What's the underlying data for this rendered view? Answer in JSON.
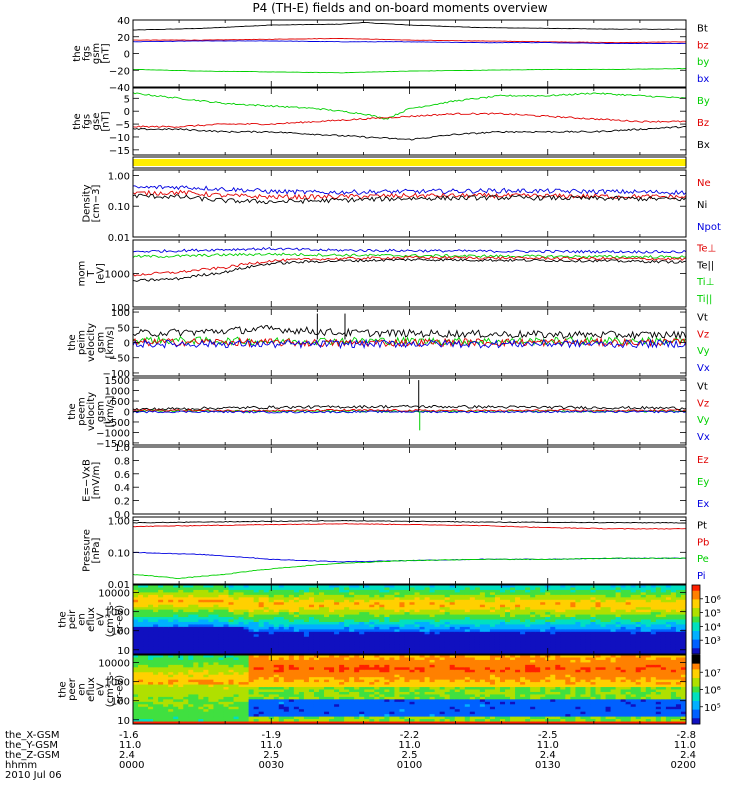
{
  "title": "P4 (TH-E) fields and on-board moments overview",
  "colors": {
    "black": "#000000",
    "red": "#e00000",
    "green": "#00d000",
    "blue": "#0000e0",
    "yellow": "#ffee00"
  },
  "chart_data": {
    "type": "line",
    "x_ticks": [
      "0000",
      "0030",
      "0100",
      "0130",
      "0200"
    ],
    "x_range_minutes": [
      0,
      120
    ],
    "footer": {
      "rows": [
        {
          "label": "the_X-GSM",
          "values": [
            "-1.6",
            "-1.9",
            "-2.2",
            "-2.5",
            "-2.8"
          ]
        },
        {
          "label": "the_Y-GSM",
          "values": [
            "11.0",
            "11.0",
            "11.0",
            "11.0",
            "11.0"
          ]
        },
        {
          "label": "the_Z-GSM",
          "values": [
            "2.4",
            "2.5",
            "2.5",
            "2.4",
            "2.4"
          ]
        },
        {
          "label": "hhmm",
          "values": [
            "0000",
            "0030",
            "0100",
            "0130",
            "0200"
          ]
        }
      ],
      "date": "2010 Jul 06"
    },
    "panels": [
      {
        "id": "fgs-gsm",
        "ylabel_lines": [
          "the",
          "fgs",
          "gsm",
          "[nT]"
        ],
        "ytick_labels": [
          "40",
          "20",
          "0",
          "−20",
          "−40"
        ],
        "legend": [
          {
            "text": "Bt",
            "color": "black"
          },
          {
            "text": "bz",
            "color": "red"
          },
          {
            "text": "by",
            "color": "green"
          },
          {
            "text": "bx",
            "color": "blue"
          }
        ],
        "series": [
          {
            "color": "black",
            "x": [
              0,
              15,
              30,
              45,
              50,
              60,
              75,
              90,
              105,
              120
            ],
            "y": [
              28,
              30,
              34,
              35,
              37,
              34,
              31,
              30,
              29,
              29
            ]
          },
          {
            "color": "red",
            "x": [
              0,
              15,
              30,
              45,
              60,
              75,
              90,
              105,
              120
            ],
            "y": [
              16,
              16,
              17,
              18,
              16,
              15,
              14,
              13,
              14
            ]
          },
          {
            "color": "blue",
            "x": [
              0,
              15,
              30,
              45,
              60,
              75,
              90,
              105,
              120
            ],
            "y": [
              14,
              15,
              15,
              14,
              14,
              13,
              13,
              12,
              12
            ]
          },
          {
            "color": "green",
            "x": [
              0,
              15,
              30,
              45,
              60,
              75,
              90,
              105,
              120
            ],
            "y": [
              -19,
              -21,
              -22,
              -23,
              -21,
              -20,
              -19,
              -19,
              -18
            ]
          }
        ]
      },
      {
        "id": "fgs-gse",
        "ylabel_lines": [
          "the",
          "fgs",
          "gse",
          "[nT]"
        ],
        "ytick_labels": [
          "5",
          "0",
          "−5",
          "−10",
          "−15"
        ],
        "legend": [
          {
            "text": "By",
            "color": "green"
          },
          {
            "text": "Bz",
            "color": "red"
          },
          {
            "text": "Bx",
            "color": "black"
          }
        ],
        "series": [
          {
            "color": "green",
            "x": [
              0,
              10,
              20,
              30,
              40,
              50,
              55,
              60,
              70,
              80,
              90,
              100,
              110,
              120
            ],
            "y": [
              7,
              5,
              3,
              2,
              1,
              -1,
              -3,
              1,
              4,
              6,
              6,
              7,
              6,
              5
            ]
          },
          {
            "color": "red",
            "x": [
              0,
              10,
              20,
              30,
              40,
              50,
              60,
              70,
              80,
              90,
              100,
              110,
              120
            ],
            "y": [
              -6,
              -6,
              -5,
              -5,
              -4,
              -3,
              -2,
              -1,
              -1,
              -2,
              -3,
              -4,
              -4
            ]
          },
          {
            "color": "black",
            "x": [
              0,
              10,
              20,
              30,
              40,
              50,
              60,
              70,
              80,
              90,
              100,
              110,
              120
            ],
            "y": [
              -7,
              -7,
              -8,
              -8,
              -9,
              -10,
              -11,
              -9,
              -8,
              -8,
              -8,
              -7,
              -6
            ]
          }
        ]
      },
      {
        "id": "yellow-bar",
        "ylabel_lines": [],
        "ytick_labels": [],
        "legend": []
      },
      {
        "id": "density",
        "ylabel_lines": [
          "Density",
          "[cm−3]"
        ],
        "ytick_labels": [
          "1.00",
          "0.10",
          "0.01"
        ],
        "legend": [
          {
            "text": "Ne",
            "color": "red"
          },
          {
            "text": "Ni",
            "color": "black"
          },
          {
            "text": "Npot",
            "color": "blue"
          }
        ],
        "series": [
          {
            "color": "blue",
            "x": [
              0,
              10,
              20,
              30,
              40,
              60,
              80,
              100,
              120
            ],
            "y": [
              0.4,
              0.42,
              0.36,
              0.3,
              0.28,
              0.3,
              0.32,
              0.3,
              0.28
            ]
          },
          {
            "color": "red",
            "x": [
              0,
              10,
              20,
              30,
              40,
              60,
              80,
              100,
              120
            ],
            "y": [
              0.26,
              0.28,
              0.22,
              0.2,
              0.2,
              0.22,
              0.22,
              0.21,
              0.2
            ]
          },
          {
            "color": "black",
            "x": [
              0,
              10,
              20,
              30,
              40,
              60,
              80,
              100,
              120
            ],
            "y": [
              0.22,
              0.2,
              0.15,
              0.14,
              0.15,
              0.18,
              0.19,
              0.18,
              0.17
            ]
          }
        ]
      },
      {
        "id": "mom-temp",
        "ylabel_lines": [
          "mom",
          "T",
          "[eV]"
        ],
        "ytick_labels": [
          "1000",
          "100"
        ],
        "legend": [
          {
            "text": "Te⊥",
            "color": "red"
          },
          {
            "text": "Te||",
            "color": "black"
          },
          {
            "text": "Ti⊥",
            "color": "green"
          },
          {
            "text": "Ti||",
            "color": "green"
          }
        ],
        "series": [
          {
            "color": "blue",
            "x": [
              0,
              10,
              20,
              30,
              40,
              60,
              80,
              100,
              120
            ],
            "y": [
              4500,
              4800,
              5200,
              5500,
              5000,
              4800,
              4600,
              4500,
              4400
            ]
          },
          {
            "color": "green",
            "x": [
              0,
              10,
              20,
              30,
              40,
              60,
              80,
              100,
              120
            ],
            "y": [
              3200,
              3300,
              3600,
              3800,
              3600,
              3400,
              3300,
              3200,
              3100
            ]
          },
          {
            "color": "red",
            "x": [
              0,
              10,
              20,
              30,
              40,
              60,
              80,
              100,
              120
            ],
            "y": [
              900,
              1100,
              1500,
              2400,
              2700,
              3000,
              2900,
              2800,
              2700
            ]
          },
          {
            "color": "black",
            "x": [
              0,
              10,
              20,
              30,
              40,
              60,
              80,
              100,
              120
            ],
            "y": [
              600,
              700,
              1100,
              2000,
              2300,
              2600,
              2500,
              2400,
              2200
            ]
          }
        ]
      },
      {
        "id": "peim-velocity",
        "ylabel_lines": [
          "the",
          "peim",
          "velocity",
          "gsm",
          "[km/s]"
        ],
        "ytick_labels": [
          "100",
          "50",
          "0",
          "−50",
          "−100"
        ],
        "legend": [
          {
            "text": "Vt",
            "color": "black"
          },
          {
            "text": "Vz",
            "color": "red"
          },
          {
            "text": "Vy",
            "color": "green"
          },
          {
            "text": "Vx",
            "color": "blue"
          }
        ],
        "series": [
          {
            "color": "black",
            "x": [
              0,
              15,
              30,
              45,
              60,
              75,
              90,
              105,
              120
            ],
            "y": [
              30,
              35,
              45,
              32,
              30,
              28,
              26,
              25,
              25
            ]
          },
          {
            "color": "green",
            "x": [
              0,
              15,
              30,
              45,
              60,
              75,
              90,
              105,
              120
            ],
            "y": [
              8,
              6,
              4,
              6,
              5,
              4,
              5,
              6,
              5
            ]
          },
          {
            "color": "red",
            "x": [
              0,
              15,
              30,
              45,
              60,
              75,
              90,
              105,
              120
            ],
            "y": [
              0,
              2,
              0,
              -2,
              0,
              1,
              0,
              0,
              0
            ]
          },
          {
            "color": "blue",
            "x": [
              0,
              15,
              30,
              45,
              60,
              75,
              90,
              105,
              120
            ],
            "y": [
              -5,
              -4,
              -6,
              -5,
              -4,
              -5,
              -4,
              -5,
              -4
            ]
          }
        ]
      },
      {
        "id": "peem-velocity",
        "ylabel_lines": [
          "the",
          "peem",
          "velocity",
          "gsm",
          "[km/s]"
        ],
        "ytick_labels": [
          "1500",
          "1000",
          "500",
          "0",
          "−500",
          "−1000",
          "−1500"
        ],
        "legend": [
          {
            "text": "Vt",
            "color": "black"
          },
          {
            "text": "Vz",
            "color": "red"
          },
          {
            "text": "Vy",
            "color": "green"
          },
          {
            "text": "Vx",
            "color": "blue"
          }
        ],
        "series": [
          {
            "color": "black",
            "x": [
              0,
              15,
              30,
              45,
              60,
              75,
              90,
              105,
              120
            ],
            "y": [
              100,
              150,
              200,
              220,
              240,
              220,
              200,
              180,
              160
            ]
          },
          {
            "color": "green",
            "x": [
              0,
              15,
              30,
              45,
              60,
              75,
              90,
              105,
              120
            ],
            "y": [
              30,
              20,
              10,
              20,
              10,
              15,
              20,
              10,
              15
            ]
          },
          {
            "color": "red",
            "x": [
              0,
              15,
              30,
              45,
              60,
              75,
              90,
              105,
              120
            ],
            "y": [
              60,
              50,
              40,
              60,
              50,
              40,
              50,
              40,
              50
            ]
          },
          {
            "color": "blue",
            "x": [
              0,
              15,
              30,
              45,
              60,
              75,
              90,
              105,
              120
            ],
            "y": [
              -20,
              -10,
              -30,
              -20,
              -10,
              -20,
              -10,
              -20,
              -10
            ]
          }
        ]
      },
      {
        "id": "e-vxb",
        "ylabel_lines": [
          "E=−VxB",
          "[mV/m]"
        ],
        "ytick_labels": [
          "1.0",
          "0.8",
          "0.6",
          "0.4",
          "0.2",
          "0.0"
        ],
        "legend": [
          {
            "text": "Ez",
            "color": "red"
          },
          {
            "text": "Ey",
            "color": "green"
          },
          {
            "text": "Ex",
            "color": "blue"
          }
        ]
      },
      {
        "id": "pressure",
        "ylabel_lines": [
          "Pressure",
          "[nPa]"
        ],
        "ytick_labels": [
          "1.00",
          "0.10",
          "0.01"
        ],
        "legend": [
          {
            "text": "Pt",
            "color": "black"
          },
          {
            "text": "Pb",
            "color": "red"
          },
          {
            "text": "Pe",
            "color": "green"
          },
          {
            "text": "Pi",
            "color": "blue"
          }
        ],
        "series": [
          {
            "color": "black",
            "x": [
              0,
              15,
              30,
              45,
              60,
              75,
              90,
              105,
              120
            ],
            "y": [
              0.85,
              0.9,
              0.95,
              1.0,
              0.95,
              0.9,
              0.88,
              0.86,
              0.85
            ]
          },
          {
            "color": "red",
            "x": [
              0,
              15,
              30,
              45,
              60,
              75,
              90,
              105,
              120
            ],
            "y": [
              0.65,
              0.7,
              0.75,
              0.8,
              0.75,
              0.7,
              0.6,
              0.55,
              0.55
            ]
          },
          {
            "color": "blue",
            "x": [
              0,
              15,
              30,
              45,
              60,
              75,
              90,
              105,
              120
            ],
            "y": [
              0.1,
              0.085,
              0.06,
              0.05,
              0.055,
              0.06,
              0.06,
              0.065,
              0.065
            ]
          },
          {
            "color": "green",
            "x": [
              0,
              10,
              20,
              30,
              45,
              60,
              75,
              90,
              105,
              120
            ],
            "y": [
              0.02,
              0.015,
              0.02,
              0.03,
              0.045,
              0.055,
              0.06,
              0.06,
              0.065,
              0.065
            ]
          }
        ]
      },
      {
        "id": "peir-spectrogram",
        "ylabel_lines": [
          "the",
          "peir",
          "en",
          "eflux",
          "eV",
          "(cm²-s-",
          "sr-eV)"
        ],
        "ytick_labels": [
          "10000",
          "1000",
          "100",
          "10"
        ],
        "colorbar_labels": [
          "10⁶",
          "10⁵",
          "10⁴",
          "10³"
        ]
      },
      {
        "id": "peer-spectrogram",
        "ylabel_lines": [
          "the",
          "peer",
          "en",
          "eflux",
          "eV",
          "(cm²-s-",
          "sr-eV)"
        ],
        "ytick_labels": [
          "10000",
          "1000",
          "100",
          "10"
        ],
        "colorbar_labels": [
          "10⁷",
          "10⁶",
          "10⁵"
        ]
      }
    ]
  }
}
